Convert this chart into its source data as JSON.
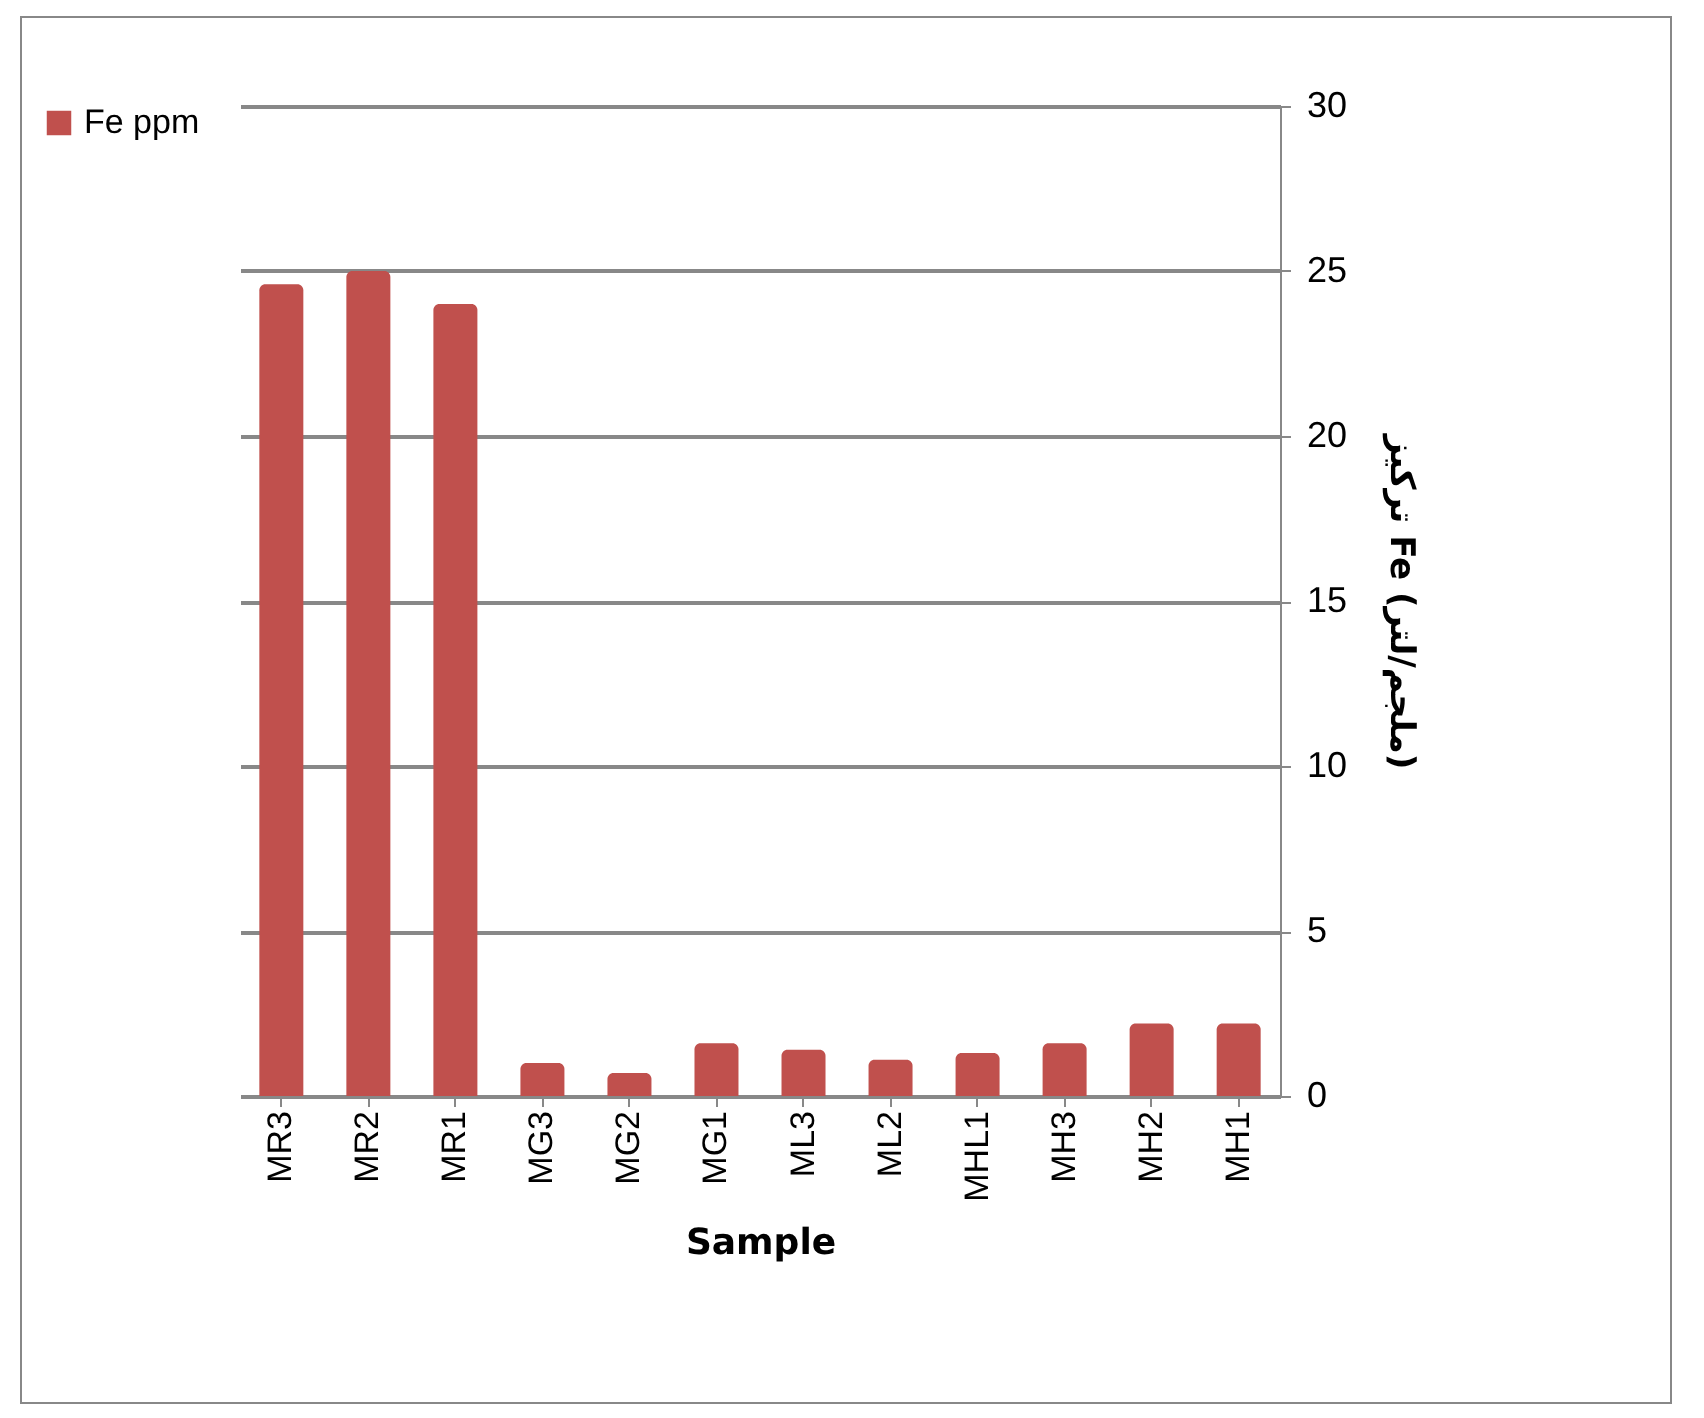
{
  "chart_data": {
    "type": "bar",
    "xlabel": "Sample",
    "ylabel": "تركيز Fe (ملجم/لتر)",
    "categories": [
      "MR3",
      "MR2",
      "MR1",
      "MG3",
      "MG2",
      "MG1",
      "ML3",
      "ML2",
      "MHL1",
      "MH3",
      "MH2",
      "MH1"
    ],
    "series": [
      {
        "name": "Fe ppm",
        "color": "#c0504d",
        "values": [
          24.6,
          25,
          24,
          1,
          0.7,
          1.6,
          1.4,
          1.1,
          1.3,
          1.6,
          2.2,
          2.2
        ]
      }
    ],
    "ylim": [
      0,
      30
    ],
    "yticks": [
      0,
      5,
      10,
      15,
      20,
      25,
      30
    ],
    "grid": "y",
    "legend": "left"
  }
}
